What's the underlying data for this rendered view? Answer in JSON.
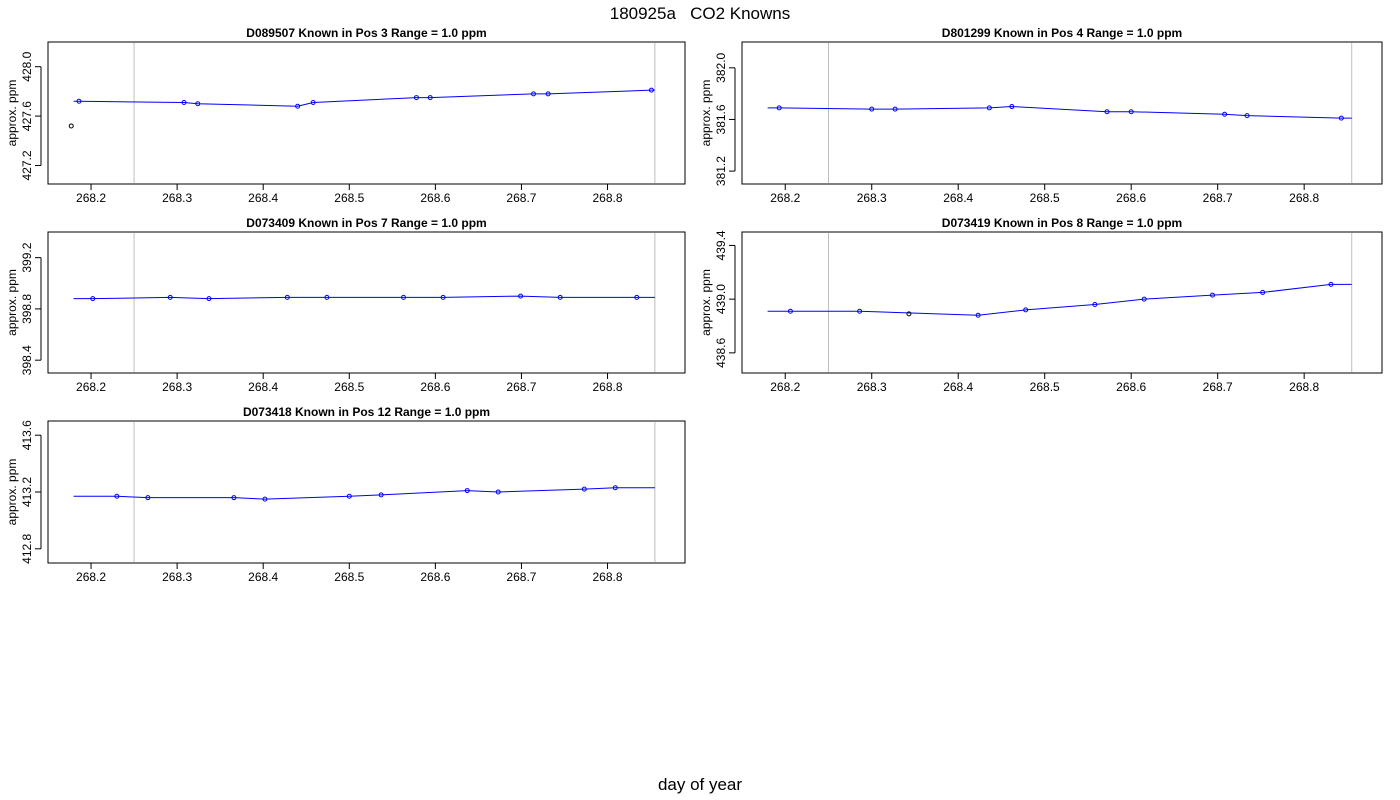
{
  "title": "180925a   CO2 Knowns",
  "xlabel": "day of year",
  "chart_data": [
    {
      "type": "line",
      "title_parts": [
        "D089507",
        "Known in Pos 3",
        "Range = 1.0 ppm"
      ],
      "ylabel": "approx. ppm",
      "xlim": [
        268.15,
        268.89
      ],
      "ylim": [
        427.05,
        428.2
      ],
      "xticks": [
        "268.2",
        "268.3",
        "268.4",
        "268.5",
        "268.6",
        "268.7",
        "268.8"
      ],
      "yticks": [
        "427.2",
        "427.6",
        "428.0"
      ],
      "vlines": [
        268.25,
        268.855
      ],
      "outliers": [
        {
          "x": 268.177,
          "y": 427.52
        }
      ],
      "x": [
        268.186,
        268.308,
        268.324,
        268.44,
        268.458,
        268.578,
        268.594,
        268.714,
        268.731,
        268.851
      ],
      "y": [
        427.72,
        427.71,
        427.7,
        427.68,
        427.71,
        427.75,
        427.75,
        427.78,
        427.78,
        427.81
      ]
    },
    {
      "type": "line",
      "title_parts": [
        "D801299",
        "Known in Pos 4",
        "Range = 1.0 ppm"
      ],
      "ylabel": "approx. ppm",
      "xlim": [
        268.15,
        268.89
      ],
      "ylim": [
        381.1,
        382.2
      ],
      "xticks": [
        "268.2",
        "268.3",
        "268.4",
        "268.5",
        "268.6",
        "268.7",
        "268.8"
      ],
      "yticks": [
        "381.2",
        "381.6",
        "382.0"
      ],
      "vlines": [
        268.25,
        268.855
      ],
      "outliers": [],
      "x": [
        268.193,
        268.3,
        268.327,
        268.436,
        268.462,
        268.572,
        268.6,
        268.708,
        268.734,
        268.843
      ],
      "y": [
        381.69,
        381.68,
        381.68,
        381.69,
        381.7,
        381.66,
        381.66,
        381.64,
        381.63,
        381.61
      ]
    },
    {
      "type": "line",
      "title_parts": [
        "D073409",
        "Known in Pos 7",
        "Range = 1.0 ppm"
      ],
      "ylabel": "approx. ppm",
      "xlim": [
        268.15,
        268.89
      ],
      "ylim": [
        398.3,
        399.4
      ],
      "xticks": [
        "268.2",
        "268.3",
        "268.4",
        "268.5",
        "268.6",
        "268.7",
        "268.8"
      ],
      "yticks": [
        "398.4",
        "398.8",
        "399.2"
      ],
      "vlines": [
        268.25,
        268.855
      ],
      "outliers": [],
      "x": [
        268.202,
        268.292,
        268.337,
        268.428,
        268.474,
        268.563,
        268.609,
        268.699,
        268.745,
        268.834
      ],
      "y": [
        398.88,
        398.89,
        398.88,
        398.89,
        398.89,
        398.89,
        398.89,
        398.9,
        398.89,
        398.89
      ]
    },
    {
      "type": "line",
      "title_parts": [
        "D073419",
        "Known in Pos 8",
        "Range = 1.0 ppm"
      ],
      "ylabel": "approx. ppm",
      "xlim": [
        268.15,
        268.89
      ],
      "ylim": [
        438.45,
        439.5
      ],
      "xticks": [
        "268.2",
        "268.3",
        "268.4",
        "268.5",
        "268.6",
        "268.7",
        "268.8"
      ],
      "yticks": [
        "438.6",
        "439.0",
        "439.4"
      ],
      "vlines": [
        268.25,
        268.855
      ],
      "outliers": [
        {
          "x": 268.343,
          "y": 438.89
        }
      ],
      "x": [
        268.206,
        268.286,
        268.423,
        268.478,
        268.558,
        268.615,
        268.694,
        268.752,
        268.831
      ],
      "y": [
        438.91,
        438.91,
        438.88,
        438.92,
        438.96,
        439.0,
        439.03,
        439.05,
        439.11
      ]
    },
    {
      "type": "line",
      "title_parts": [
        "D073418",
        "Known in Pos 12",
        "Range = 1.0 ppm"
      ],
      "ylabel": "approx. ppm",
      "xlim": [
        268.15,
        268.89
      ],
      "ylim": [
        412.7,
        413.7
      ],
      "xticks": [
        "268.2",
        "268.3",
        "268.4",
        "268.5",
        "268.6",
        "268.7",
        "268.8"
      ],
      "yticks": [
        "412.8",
        "413.2",
        "413.6"
      ],
      "vlines": [
        268.25,
        268.855
      ],
      "outliers": [],
      "x": [
        268.23,
        268.266,
        268.366,
        268.402,
        268.5,
        268.537,
        268.637,
        268.673,
        268.773,
        268.809
      ],
      "y": [
        413.17,
        413.16,
        413.16,
        413.15,
        413.17,
        413.18,
        413.21,
        413.2,
        413.22,
        413.23
      ]
    }
  ]
}
